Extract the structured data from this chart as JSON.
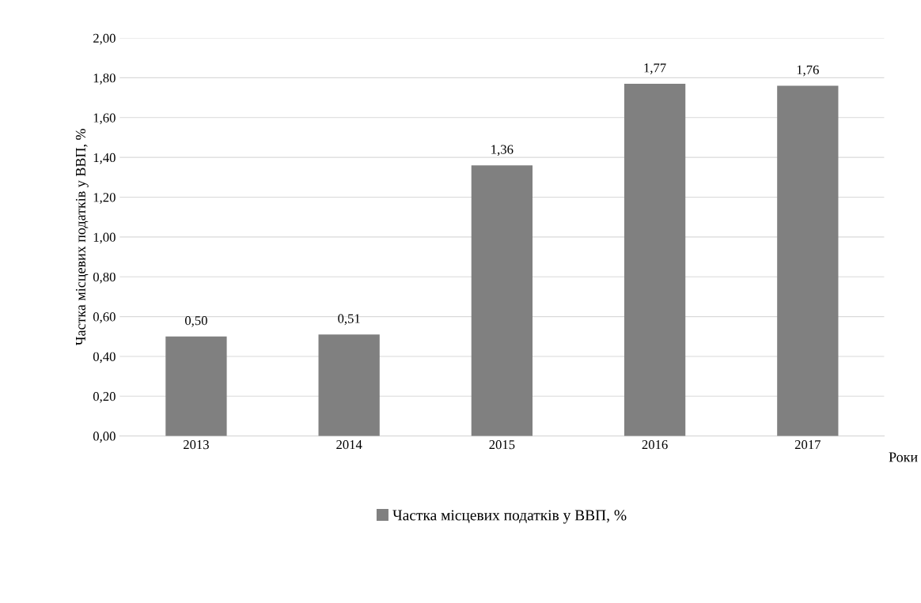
{
  "chart_data": {
    "type": "bar",
    "categories": [
      "2013",
      "2014",
      "2015",
      "2016",
      "2017"
    ],
    "series": [
      {
        "name": "Частка місцевих податків у ВВП, %",
        "color": "#808080",
        "values": [
          0.5,
          0.51,
          1.36,
          1.77,
          1.76
        ]
      }
    ],
    "value_labels": [
      "0,50",
      "0,51",
      "1,36",
      "1,77",
      "1,76"
    ],
    "ylabel": "Частка місцевих податків у ВВП, %",
    "xlabel": "Роки",
    "ylim": [
      0,
      2
    ],
    "yticks": [
      {
        "value": 0,
        "label": "0,00"
      },
      {
        "value": 0.2,
        "label": "0,20"
      },
      {
        "value": 0.4,
        "label": "0,40"
      },
      {
        "value": 0.6,
        "label": "0,60"
      },
      {
        "value": 0.8,
        "label": "0,80"
      },
      {
        "value": 1.0,
        "label": "1,00"
      },
      {
        "value": 1.2,
        "label": "1,20"
      },
      {
        "value": 1.4,
        "label": "1,40"
      },
      {
        "value": 1.6,
        "label": "1,60"
      },
      {
        "value": 1.8,
        "label": "1,80"
      },
      {
        "value": 2.0,
        "label": "2,00"
      }
    ],
    "grid": "y",
    "legend": "bottom"
  }
}
